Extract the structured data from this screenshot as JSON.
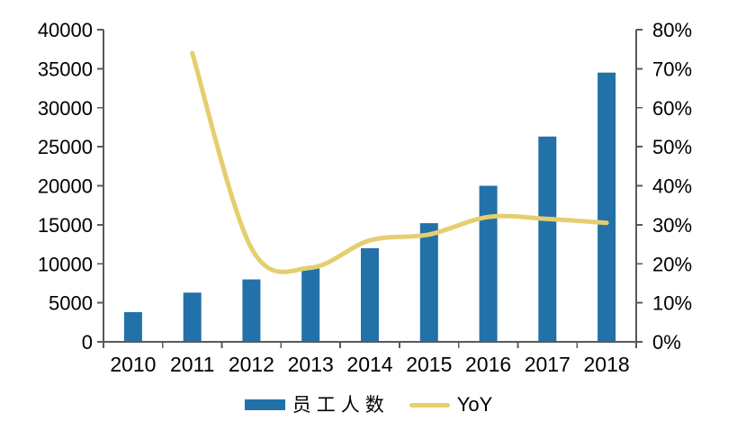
{
  "chart_data": {
    "type": "combo",
    "title": "",
    "categories": [
      "2010",
      "2011",
      "2012",
      "2013",
      "2014",
      "2015",
      "2016",
      "2017",
      "2018"
    ],
    "series": [
      {
        "name": "员工人数",
        "type": "bar",
        "axis": "left",
        "color": "#2272A9",
        "values": [
          3800,
          6300,
          8000,
          9400,
          12000,
          15200,
          20000,
          26300,
          34500
        ]
      },
      {
        "name": "YoY",
        "type": "line",
        "axis": "right",
        "color": "#E5CE6E",
        "values": [
          null,
          74,
          24,
          19,
          26,
          27.5,
          32,
          31.5,
          30.5
        ]
      }
    ],
    "left_axis": {
      "min": 0,
      "max": 40000,
      "step": 5000,
      "tick_labels": [
        "0",
        "5000",
        "10000",
        "15000",
        "20000",
        "25000",
        "30000",
        "35000",
        "40000"
      ]
    },
    "right_axis": {
      "min": 0,
      "max": 80,
      "step": 10,
      "suffix": "%",
      "tick_labels": [
        "0%",
        "10%",
        "20%",
        "30%",
        "40%",
        "50%",
        "60%",
        "70%",
        "80%"
      ]
    },
    "legend": {
      "position": "bottom",
      "entries": [
        {
          "label": "员工人数",
          "swatch": "bar",
          "color": "#2272A9"
        },
        {
          "label": "YoY",
          "swatch": "line",
          "color": "#E5CE6E"
        }
      ]
    },
    "grid": false,
    "axis_color": "#595959",
    "text_color": "#000000",
    "background_color": "#FFFFFF"
  }
}
